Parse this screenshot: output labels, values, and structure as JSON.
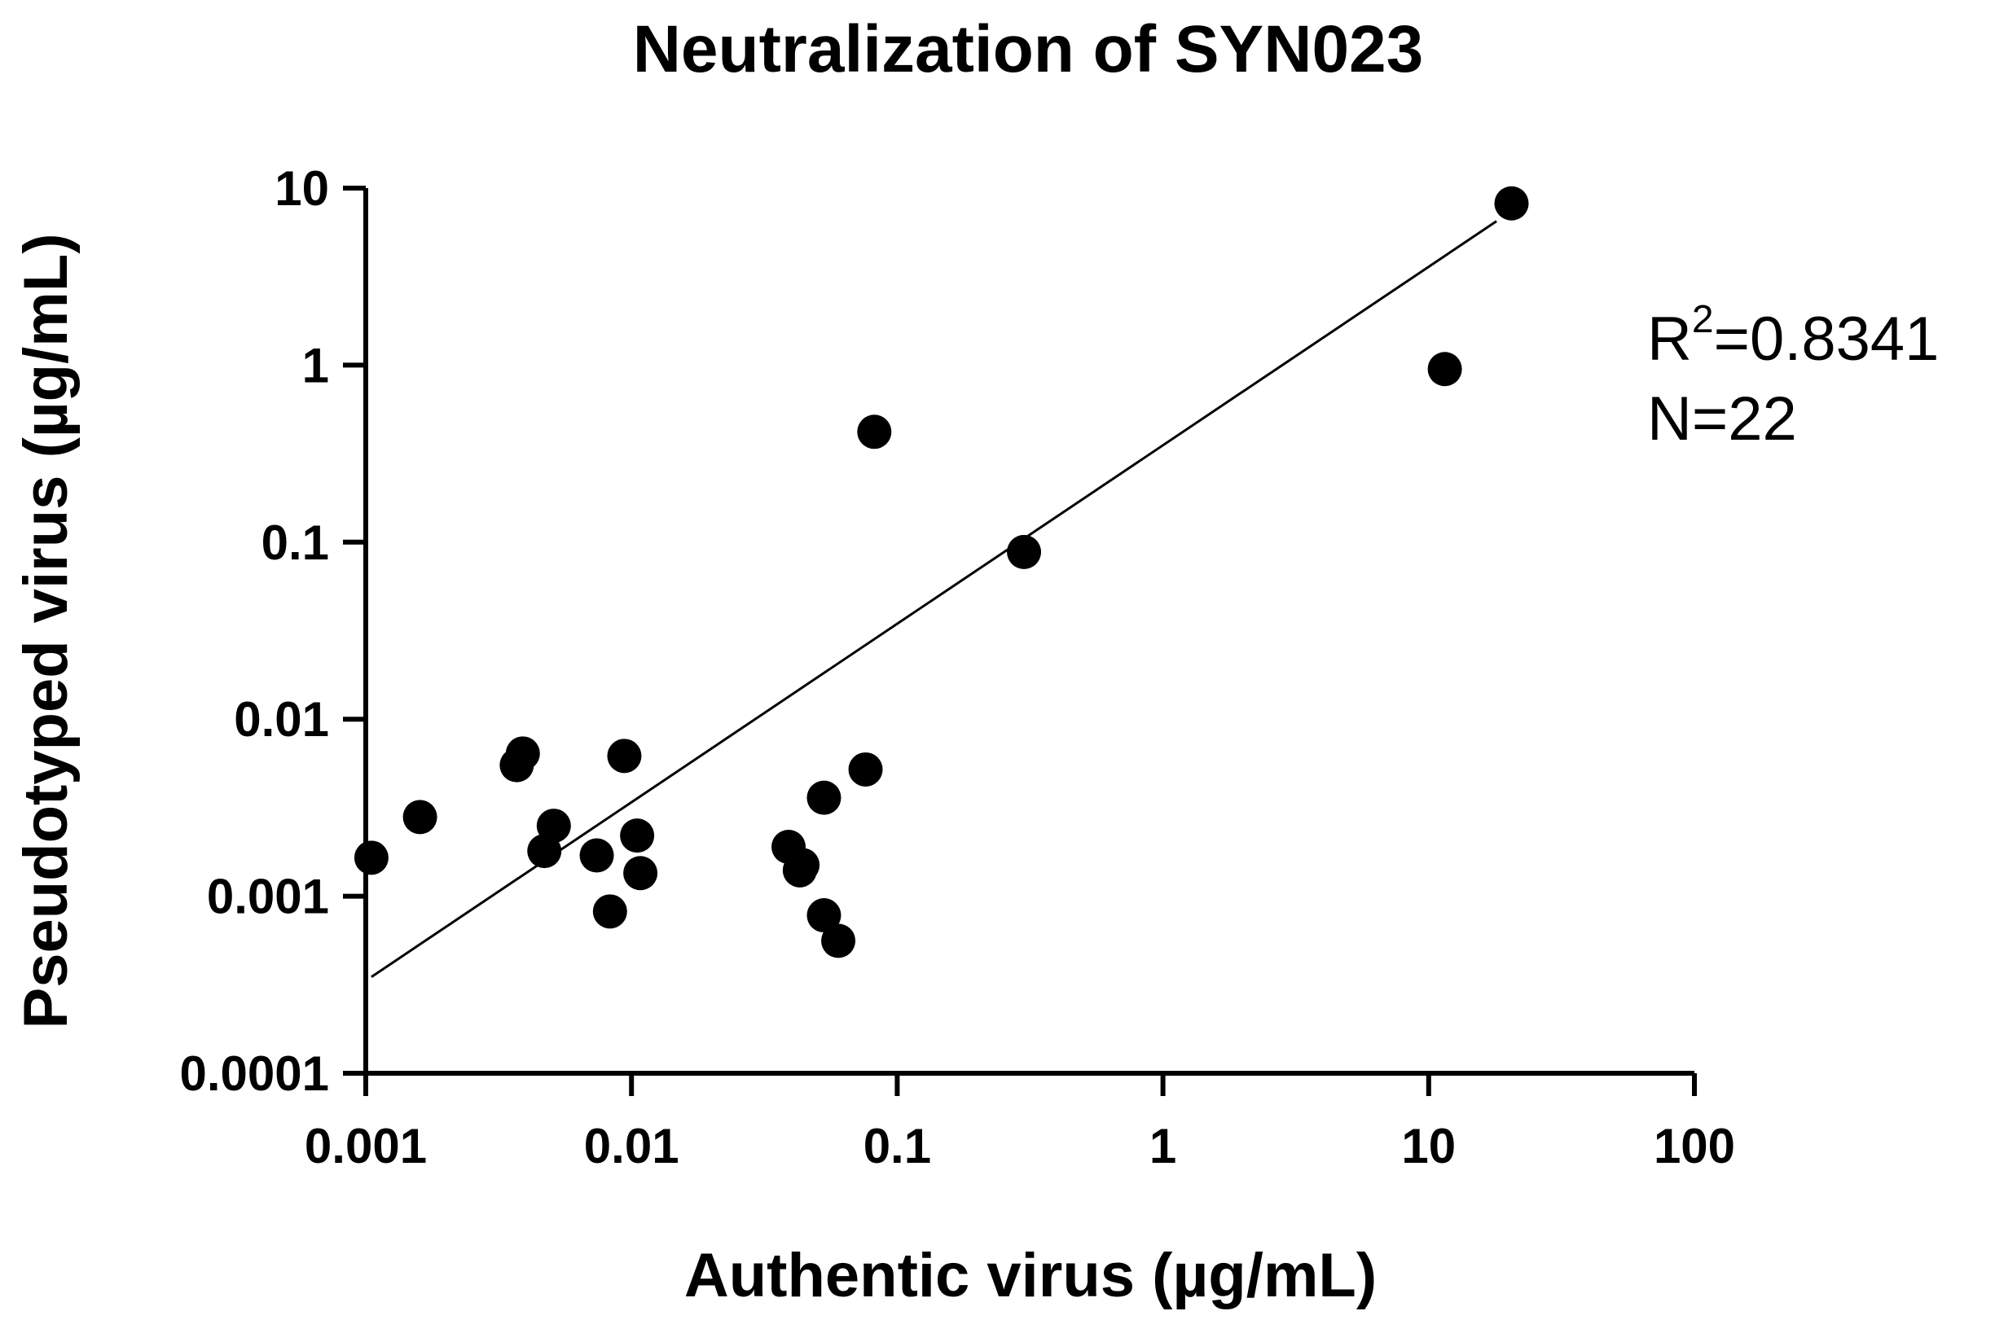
{
  "chart_data": {
    "type": "scatter",
    "title": "Neutralization of SYN023",
    "xlabel": "Authentic virus (µg/mL)",
    "ylabel": "Pseudotyped virus (µg/mL)",
    "x_scale": "log",
    "y_scale": "log",
    "xlim": [
      0.001,
      100
    ],
    "ylim": [
      0.0001,
      10
    ],
    "x_ticks": [
      "0.001",
      "0.01",
      "0.1",
      "1",
      "10",
      "100"
    ],
    "y_ticks": [
      "0.0001",
      "0.001",
      "0.01",
      "0.1",
      "1",
      "10"
    ],
    "grid": false,
    "series": [
      {
        "points": [
          [
            0.00105,
            0.00165
          ],
          [
            0.0016,
            0.0028
          ],
          [
            0.0037,
            0.0055
          ],
          [
            0.0039,
            0.0064
          ],
          [
            0.0047,
            0.0018
          ],
          [
            0.0051,
            0.0025
          ],
          [
            0.0074,
            0.0017
          ],
          [
            0.0083,
            0.00082
          ],
          [
            0.0094,
            0.0062
          ],
          [
            0.0105,
            0.0022
          ],
          [
            0.0108,
            0.00135
          ],
          [
            0.039,
            0.0019
          ],
          [
            0.043,
            0.0014
          ],
          [
            0.044,
            0.0015
          ],
          [
            0.053,
            0.0036
          ],
          [
            0.053,
            0.00078
          ],
          [
            0.06,
            0.00056
          ],
          [
            0.076,
            0.0052
          ],
          [
            0.082,
            0.42
          ],
          [
            0.3,
            0.088
          ],
          [
            11.5,
            0.95
          ],
          [
            20.5,
            8.2
          ]
        ]
      }
    ],
    "fit_line": {
      "type": "linear-log-log",
      "from": [
        0.00105,
        0.00035
      ],
      "to": [
        18,
        6.5
      ]
    },
    "annotations": {
      "r2_label": "R",
      "r2_sup": "2",
      "r2_value": "=0.8341",
      "n": "N=22"
    }
  },
  "colors": {
    "marker": "#000000",
    "axis": "#000000",
    "background": "#ffffff"
  }
}
